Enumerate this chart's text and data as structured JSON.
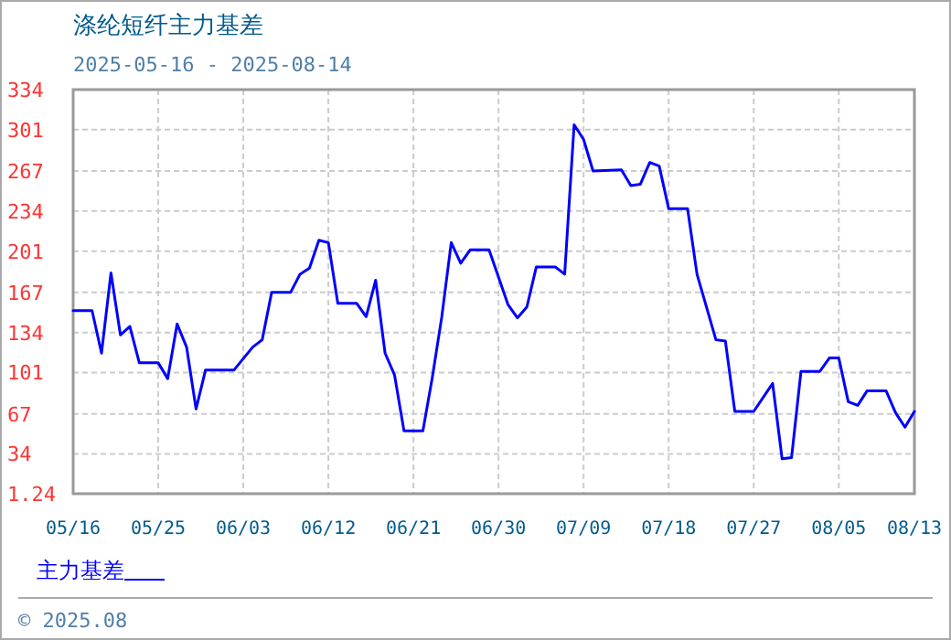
{
  "chart_data": {
    "type": "line",
    "title": "涤纶短纤主力基差",
    "subtitle": "2025-05-16 - 2025-08-14",
    "x": [
      "2025-05-16",
      "2025-05-18",
      "2025-05-19",
      "2025-05-20",
      "2025-05-21",
      "2025-05-22",
      "2025-05-23",
      "2025-05-25",
      "2025-05-26",
      "2025-05-27",
      "2025-05-28",
      "2025-05-29",
      "2025-05-30",
      "2025-06-02",
      "2025-06-04",
      "2025-06-05",
      "2025-06-06",
      "2025-06-08",
      "2025-06-09",
      "2025-06-10",
      "2025-06-11",
      "2025-06-12",
      "2025-06-13",
      "2025-06-15",
      "2025-06-16",
      "2025-06-17",
      "2025-06-18",
      "2025-06-19",
      "2025-06-20",
      "2025-06-22",
      "2025-06-23",
      "2025-06-24",
      "2025-06-25",
      "2025-06-26",
      "2025-06-27",
      "2025-06-29",
      "2025-07-01",
      "2025-07-02",
      "2025-07-03",
      "2025-07-04",
      "2025-07-06",
      "2025-07-07",
      "2025-07-08",
      "2025-07-09",
      "2025-07-10",
      "2025-07-13",
      "2025-07-14",
      "2025-07-15",
      "2025-07-16",
      "2025-07-17",
      "2025-07-18",
      "2025-07-20",
      "2025-07-21",
      "2025-07-23",
      "2025-07-24",
      "2025-07-25",
      "2025-07-27",
      "2025-07-29",
      "2025-07-30",
      "2025-07-31",
      "2025-08-01",
      "2025-08-03",
      "2025-08-04",
      "2025-08-05",
      "2025-08-06",
      "2025-08-07",
      "2025-08-08",
      "2025-08-10",
      "2025-08-11",
      "2025-08-12",
      "2025-08-13"
    ],
    "series": [
      {
        "name": "主力基差",
        "color": "#0000ff",
        "values": [
          152,
          152,
          117,
          183,
          132,
          139,
          109,
          109,
          96,
          141,
          122,
          71,
          103,
          103,
          122,
          128,
          167,
          167,
          182,
          187,
          210,
          208,
          158,
          158,
          147,
          177,
          117,
          99,
          53,
          53,
          97,
          147,
          208,
          191,
          202,
          202,
          157,
          146,
          155,
          188,
          188,
          182,
          305,
          293,
          267,
          268,
          255,
          256,
          274,
          271,
          236,
          236,
          182,
          128,
          127,
          69,
          69,
          92,
          30,
          31,
          102,
          102,
          113,
          113,
          77,
          74,
          86,
          86,
          68,
          56,
          69
        ]
      }
    ],
    "xlim": [
      "2025-05-16",
      "2025-08-13"
    ],
    "xticks": [
      {
        "value": "2025-05-16",
        "label": "05/16"
      },
      {
        "value": "2025-05-25",
        "label": "05/25"
      },
      {
        "value": "2025-06-03",
        "label": "06/03"
      },
      {
        "value": "2025-06-12",
        "label": "06/12"
      },
      {
        "value": "2025-06-21",
        "label": "06/21"
      },
      {
        "value": "2025-06-30",
        "label": "06/30"
      },
      {
        "value": "2025-07-09",
        "label": "07/09"
      },
      {
        "value": "2025-07-18",
        "label": "07/18"
      },
      {
        "value": "2025-07-27",
        "label": "07/27"
      },
      {
        "value": "2025-08-05",
        "label": "08/05"
      },
      {
        "value": "2025-08-13",
        "label": "08/13"
      }
    ],
    "ylim": [
      1.24,
      334
    ],
    "yticks": [
      1.24,
      34,
      67,
      101,
      134,
      167,
      201,
      234,
      267,
      301,
      334
    ],
    "grid": true,
    "legend": "bottom",
    "marker": "none",
    "line_style": "solid",
    "annotations": [
      "© 2025.08"
    ]
  }
}
